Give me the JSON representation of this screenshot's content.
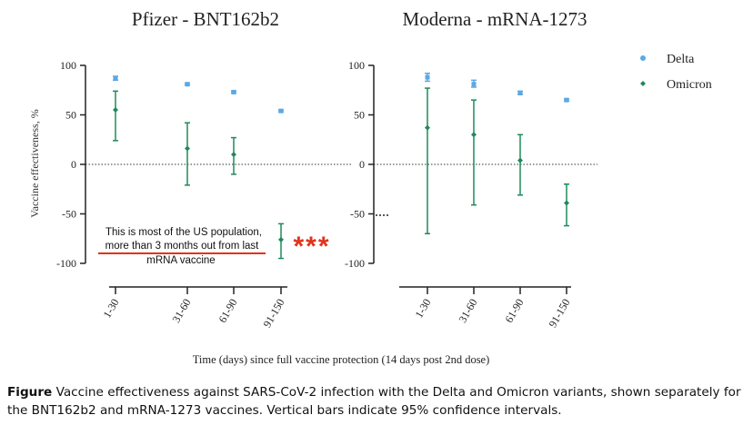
{
  "chart_data": [
    {
      "type": "scatter",
      "title": "Pfizer - BNT162b2",
      "ylabel": "Vaccine effectiveness, %",
      "categories": [
        "1-30",
        "31-60",
        "61-90",
        "91-150"
      ],
      "yticks": [
        "100",
        "50",
        "0",
        "-50",
        "-100"
      ],
      "ylim": [
        -100,
        100
      ],
      "series": [
        {
          "name": "Delta",
          "values": [
            87,
            81,
            73,
            54
          ],
          "lower": [
            85,
            80,
            72,
            53
          ],
          "upper": [
            89,
            82,
            74,
            55
          ]
        },
        {
          "name": "Omicron",
          "values": [
            55,
            16,
            10,
            -76
          ],
          "lower": [
            24,
            -21,
            -10,
            -95
          ],
          "upper": [
            74,
            42,
            27,
            -60
          ]
        }
      ]
    },
    {
      "type": "scatter",
      "title": "Moderna - mRNA-1273",
      "categories": [
        "1-30",
        "31-60",
        "61-90",
        "91-150"
      ],
      "yticks": [
        "100",
        "50",
        "0",
        "-50",
        "-100"
      ],
      "ylim": [
        -100,
        100
      ],
      "series": [
        {
          "name": "Delta",
          "values": [
            88,
            81,
            72,
            65
          ],
          "lower": [
            84,
            78,
            71,
            64
          ],
          "upper": [
            92,
            85,
            74,
            66
          ]
        },
        {
          "name": "Omicron",
          "values": [
            37,
            30,
            4,
            -39
          ],
          "lower": [
            -70,
            -41,
            -31,
            -62
          ],
          "upper": [
            77,
            65,
            30,
            -20
          ]
        }
      ]
    }
  ],
  "legend": {
    "items": [
      {
        "name": "Delta",
        "color": "#5aa9e6"
      },
      {
        "name": "Omicron",
        "color": "#1f8a5a"
      }
    ]
  },
  "xlabel": "Time (days) since full vaccine protection (14 days post 2nd dose)",
  "annotation": {
    "lines": [
      "This is most of the US population,",
      "more than 3 months out from last",
      "mRNA vaccine"
    ],
    "stars": "***",
    "color": "#e0341c"
  },
  "caption": {
    "bold": "Figure",
    "text": " Vaccine effectiveness against SARS-CoV-2 infection with the Delta and Omicron variants, shown separately for the BNT162b2 and mRNA-1273 vaccines. Vertical bars indicate 95% confidence intervals."
  }
}
